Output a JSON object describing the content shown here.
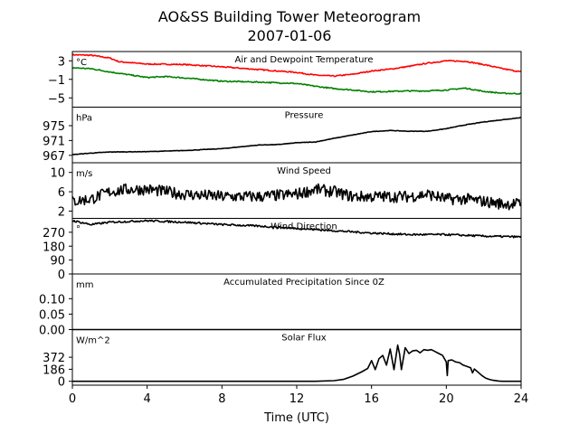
{
  "title": "AO&SS Building Tower Meteorogram",
  "subtitle": "2007-01-06",
  "colors": {
    "air": "#ff0000",
    "dewpoint": "#008000",
    "line": "#000000"
  },
  "chart_data": {
    "type": "line",
    "xlabel": "Time (UTC)",
    "xlim": [
      0,
      24
    ],
    "xticks": [
      "0",
      "4",
      "8",
      "12",
      "16",
      "20",
      "24"
    ],
    "panels": [
      {
        "title": "Air and Dewpoint Temperature",
        "unit": "°C",
        "ylim": [
          -7,
          5
        ],
        "yticks": [
          {
            "v": 3,
            "label": "3"
          },
          {
            "v": -1,
            "label": "−1"
          },
          {
            "v": -5,
            "label": "−5"
          }
        ],
        "series": [
          {
            "color": "air",
            "noise": 0.12,
            "x": [
              0,
              1,
              2,
              2.5,
              4,
              6,
              8,
              10,
              12,
              13,
              14,
              15,
              16,
              17,
              18,
              19,
              20,
              21,
              22,
              23,
              24
            ],
            "y": [
              4.3,
              4.2,
              3.6,
              2.8,
              2.3,
              2.2,
              1.7,
              1.1,
              0.5,
              -0.1,
              -0.3,
              0.1,
              0.8,
              1.2,
              1.8,
              2.5,
              3.0,
              2.9,
              2.2,
              1.3,
              0.6
            ]
          },
          {
            "color": "dewpoint",
            "noise": 0.12,
            "x": [
              0,
              1,
              2,
              3,
              4,
              5,
              6,
              8,
              10,
              12,
              13,
              14,
              15,
              16,
              17,
              18,
              19,
              20,
              21,
              22,
              23,
              24
            ],
            "y": [
              1.5,
              1.3,
              0.6,
              0.0,
              -0.6,
              -0.4,
              -0.7,
              -1.4,
              -1.6,
              -1.9,
              -2.5,
              -3.0,
              -3.3,
              -3.7,
              -3.6,
              -3.5,
              -3.5,
              -3.3,
              -2.9,
              -3.6,
              -4.0,
              -4.1
            ]
          }
        ]
      },
      {
        "title": "Pressure",
        "unit": "hPa",
        "ylim": [
          965,
          980
        ],
        "yticks": [
          {
            "v": 975,
            "label": "975"
          },
          {
            "v": 971,
            "label": "971"
          },
          {
            "v": 967,
            "label": "967"
          }
        ],
        "series": [
          {
            "color": "line",
            "noise": 0.06,
            "x": [
              0,
              1,
              2,
              4,
              6,
              8,
              9,
              10,
              11,
              12,
              13,
              14,
              15,
              16,
              17,
              18,
              19,
              20,
              21,
              22,
              23,
              24
            ],
            "y": [
              967.2,
              967.6,
              967.9,
              968.0,
              968.3,
              968.8,
              969.3,
              969.8,
              969.9,
              970.4,
              970.6,
              971.6,
              972.5,
              973.4,
              973.7,
              973.5,
              973.5,
              974.2,
              975.2,
              976.0,
              976.6,
              977.2
            ]
          }
        ]
      },
      {
        "title": "Wind Speed",
        "unit": "m/s",
        "ylim": [
          0.5,
          12
        ],
        "yticks": [
          {
            "v": 10,
            "label": "10"
          },
          {
            "v": 6,
            "label": "6"
          },
          {
            "v": 2,
            "label": "2"
          }
        ],
        "series": [
          {
            "color": "line",
            "noise": 1.2,
            "x": [
              0,
              1,
              2,
              3,
              4,
              5,
              6,
              8,
              10,
              12,
              13,
              14,
              15,
              16,
              17,
              18,
              19,
              20,
              21,
              22,
              23,
              24
            ],
            "y": [
              4.0,
              4.5,
              6.0,
              6.5,
              6.5,
              6.0,
              5.5,
              5.0,
              5.0,
              5.5,
              6.5,
              6.0,
              5.0,
              5.0,
              5.0,
              5.0,
              5.5,
              4.5,
              4.5,
              4.0,
              3.5,
              3.5
            ]
          }
        ]
      },
      {
        "title": "Wind Direction",
        "unit": "°",
        "ylim": [
          0,
          360
        ],
        "yticks": [
          {
            "v": 270,
            "label": "270"
          },
          {
            "v": 180,
            "label": "180"
          },
          {
            "v": 90,
            "label": "90"
          },
          {
            "v": 0,
            "label": "0"
          }
        ],
        "series": [
          {
            "color": "line",
            "noise": 6,
            "x": [
              0,
              1,
              2,
              4,
              6,
              8,
              10,
              12,
              14,
              16,
              18,
              20,
              22,
              24
            ],
            "y": [
              345,
              320,
              335,
              345,
              335,
              320,
              310,
              295,
              280,
              265,
              255,
              255,
              245,
              240
            ]
          }
        ]
      },
      {
        "title": "Accumulated Precipitation Since 0Z",
        "unit": "mm",
        "ylim": [
          0,
          0.18
        ],
        "yticks": [
          {
            "v": 0.1,
            "label": "0.10"
          },
          {
            "v": 0.05,
            "label": "0.05"
          },
          {
            "v": 0.0,
            "label": "0.00"
          }
        ],
        "series": [
          {
            "color": "line",
            "noise": 0,
            "x": [
              0,
              24
            ],
            "y": [
              0,
              0
            ]
          }
        ]
      },
      {
        "title": "Solar Flux",
        "unit": "W/m^2",
        "ylim": [
          -60,
          800
        ],
        "yticks": [
          {
            "v": 372,
            "label": "372"
          },
          {
            "v": 186,
            "label": "186"
          },
          {
            "v": 0,
            "label": "0"
          }
        ],
        "series": [
          {
            "color": "line",
            "noise": 0,
            "x": [
              0,
              13.0,
              14.0,
              14.5,
              15.0,
              15.5,
              15.8,
              16.0,
              16.2,
              16.4,
              16.6,
              16.8,
              17.0,
              17.2,
              17.4,
              17.5,
              17.6,
              17.8,
              18.0,
              18.2,
              18.4,
              18.6,
              18.8,
              19.0,
              19.2,
              19.4,
              19.6,
              19.8,
              20.0,
              20.05,
              20.1,
              20.3,
              20.5,
              20.7,
              20.9,
              21.1,
              21.3,
              21.4,
              21.5,
              21.7,
              21.9,
              22.1,
              22.3,
              22.5,
              22.8,
              23.0,
              24.0
            ],
            "y": [
              0,
              0,
              10,
              30,
              80,
              150,
              200,
              320,
              180,
              350,
              400,
              250,
              500,
              180,
              560,
              420,
              180,
              520,
              430,
              470,
              480,
              440,
              490,
              480,
              490,
              460,
              430,
              400,
              300,
              90,
              320,
              330,
              300,
              290,
              250,
              230,
              210,
              130,
              190,
              140,
              90,
              50,
              30,
              15,
              5,
              0,
              0
            ]
          }
        ]
      }
    ]
  }
}
